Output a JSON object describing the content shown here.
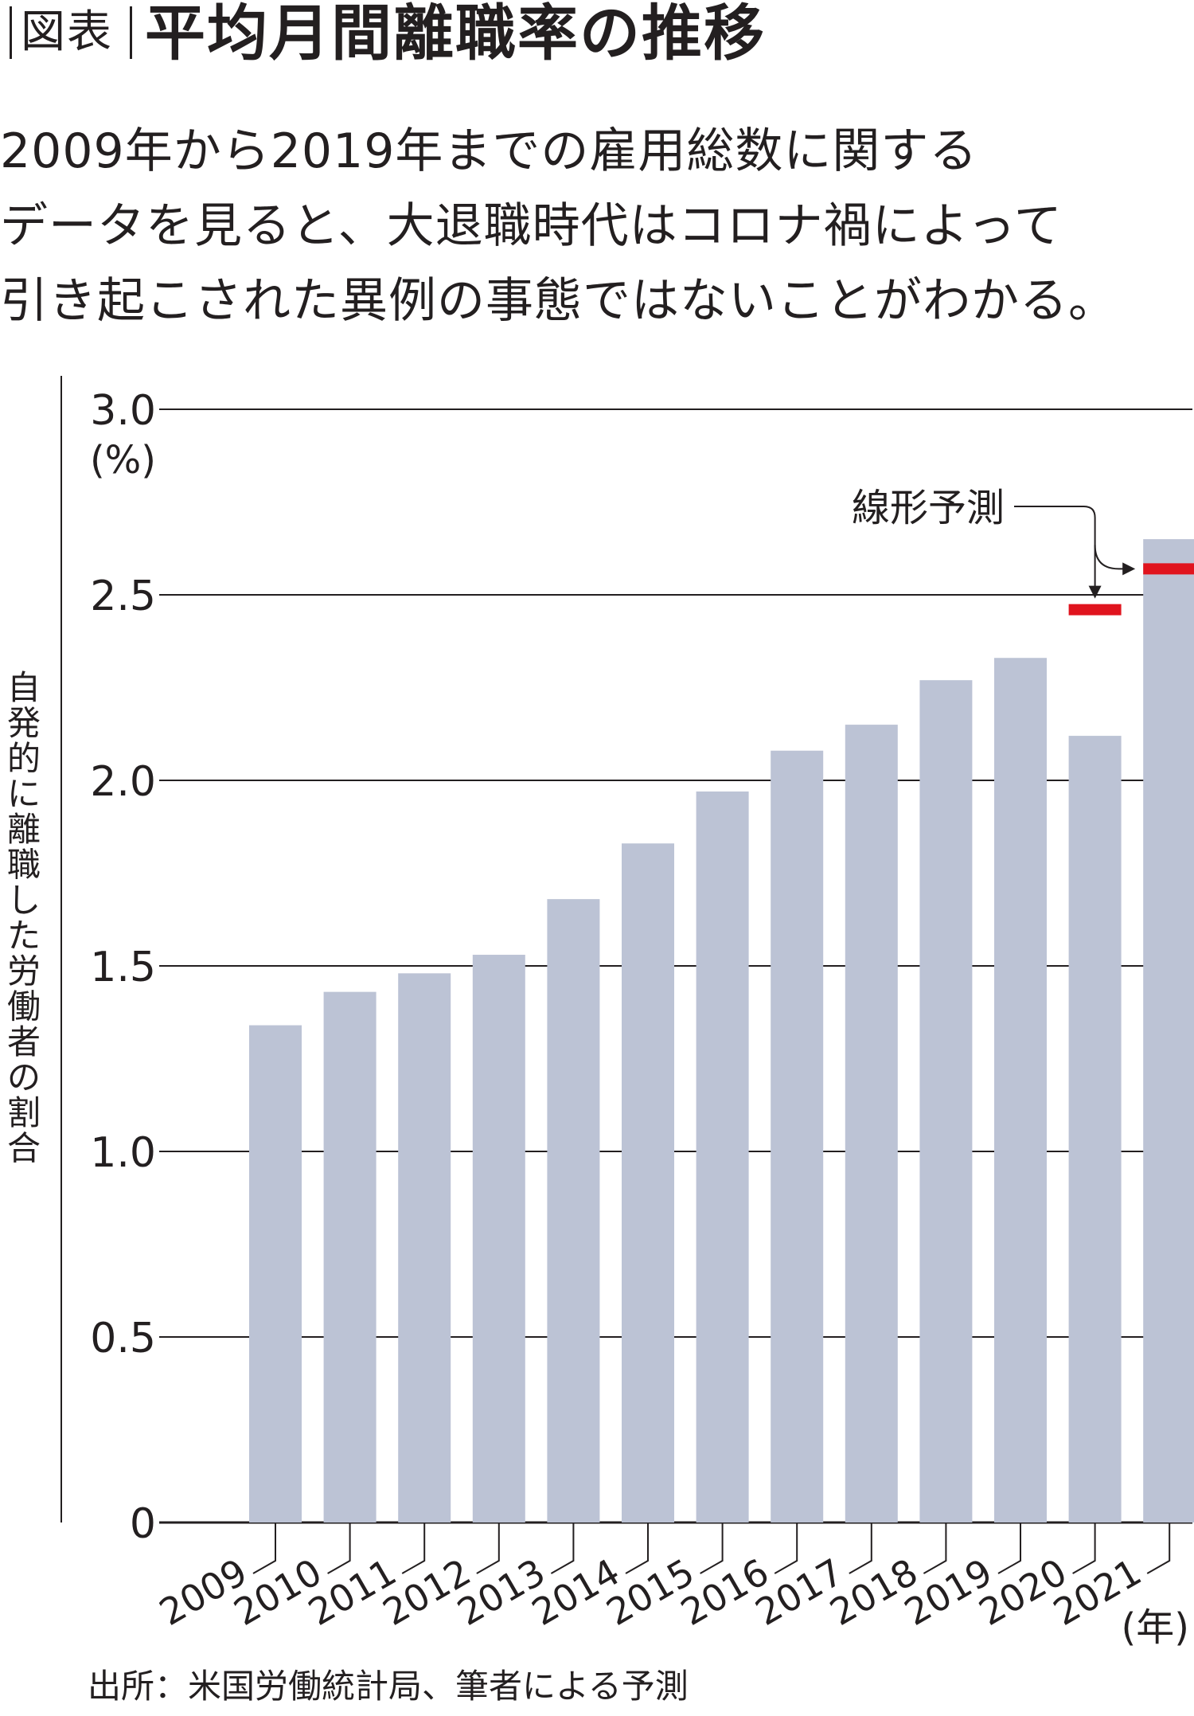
{
  "header": {
    "tag": "図表",
    "title": "平均月間離職率の推移"
  },
  "subtitle": {
    "lines": [
      "2009年から2019年までの雇用総数に関する",
      "データを見ると、大退職時代はコロナ禍によって",
      "引き起こされた異例の事態ではないことがわかる。"
    ]
  },
  "source": "出所：米国労働統計局、筆者による予測",
  "chart_data": {
    "type": "bar",
    "categories": [
      "2009",
      "2010",
      "2011",
      "2012",
      "2013",
      "2014",
      "2015",
      "2016",
      "2017",
      "2018",
      "2019",
      "2020",
      "2021"
    ],
    "values": [
      1.34,
      1.43,
      1.48,
      1.53,
      1.68,
      1.83,
      1.97,
      2.08,
      2.15,
      2.27,
      2.33,
      2.12,
      2.65
    ],
    "ylabel": "自発的に離職した労働者の割合",
    "y_unit": "(%)",
    "x_unit": "(年)",
    "ylim": [
      0,
      3.0
    ],
    "y_ticks": [
      {
        "value": 0,
        "label": "0"
      },
      {
        "value": 0.5,
        "label": "0.5"
      },
      {
        "value": 1.0,
        "label": "1.0"
      },
      {
        "value": 1.5,
        "label": "1.5"
      },
      {
        "value": 2.0,
        "label": "2.0"
      },
      {
        "value": 2.5,
        "label": "2.5"
      },
      {
        "value": 3.0,
        "label": "3.0"
      }
    ],
    "grid": true,
    "bar_color": "#bcc3d5",
    "linear_forecast": {
      "label": "線形予測",
      "color": "#e0141e",
      "points": [
        {
          "category": "2020",
          "value": 2.46
        },
        {
          "category": "2021",
          "value": 2.57
        }
      ]
    }
  }
}
